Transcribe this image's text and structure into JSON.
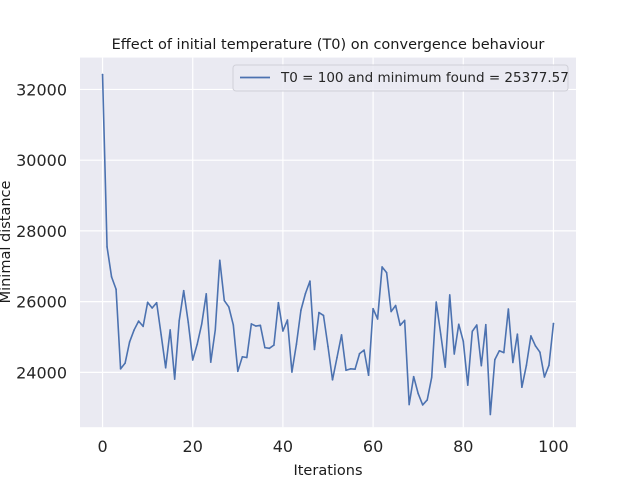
{
  "chart_data": {
    "type": "line",
    "title": "Effect of initial temperature (T0) on convergence behaviour",
    "xlabel": "Iterations",
    "ylabel": "Minimal distance",
    "xlim": [
      -5,
      105
    ],
    "ylim": [
      22450,
      32900
    ],
    "xticks": [
      0,
      20,
      40,
      60,
      80,
      100
    ],
    "yticks": [
      24000,
      26000,
      28000,
      30000,
      32000
    ],
    "xtick_labels": [
      "0",
      "20",
      "40",
      "60",
      "80",
      "100"
    ],
    "ytick_labels": [
      "24000",
      "26000",
      "28000",
      "30000",
      "32000"
    ],
    "grid": true,
    "background": "#eaeaf2",
    "grid_color": "#ffffff",
    "legend_position": "upper right",
    "series": [
      {
        "name": "T0 = 100 and minimum found = 25377.57",
        "color": "#4c72b0",
        "x": [
          0,
          1,
          2,
          3,
          4,
          5,
          6,
          7,
          8,
          9,
          10,
          11,
          12,
          13,
          14,
          15,
          16,
          17,
          18,
          19,
          20,
          21,
          22,
          23,
          24,
          25,
          26,
          27,
          28,
          29,
          30,
          31,
          32,
          33,
          34,
          35,
          36,
          37,
          38,
          39,
          40,
          41,
          42,
          43,
          44,
          45,
          46,
          47,
          48,
          49,
          50,
          51,
          52,
          53,
          54,
          55,
          56,
          57,
          58,
          59,
          60,
          61,
          62,
          63,
          64,
          65,
          66,
          67,
          68,
          69,
          70,
          71,
          72,
          73,
          74,
          75,
          76,
          77,
          78,
          79,
          80,
          81,
          82,
          83,
          84,
          85,
          86,
          87,
          88,
          89,
          90,
          91,
          92,
          93,
          94,
          95,
          96,
          97,
          98,
          99,
          100
        ],
        "values": [
          32420,
          27550,
          26700,
          26350,
          24100,
          24260,
          24860,
          25200,
          25450,
          25300,
          25980,
          25820,
          25970,
          25060,
          24130,
          25200,
          23810,
          25460,
          26310,
          25420,
          24350,
          24800,
          25370,
          26220,
          24290,
          25200,
          27170,
          26030,
          25850,
          25340,
          24030,
          24440,
          24420,
          25370,
          25310,
          25330,
          24700,
          24680,
          24770,
          25970,
          25170,
          25480,
          24010,
          24800,
          25760,
          26230,
          26580,
          24650,
          25690,
          25610,
          24730,
          23790,
          24420,
          25060,
          24060,
          24100,
          24090,
          24530,
          24630,
          23920,
          25800,
          25510,
          26980,
          26820,
          25720,
          25890,
          25330,
          25470,
          23090,
          23880,
          23400,
          23080,
          23220,
          23860,
          25990,
          25080,
          24150,
          26190,
          24520,
          25360,
          24880,
          23640,
          25160,
          25340,
          24190,
          25350,
          22810,
          24360,
          24610,
          24560,
          25790,
          24280,
          25080,
          23580,
          24200,
          25030,
          24750,
          24570,
          23870,
          24200,
          25380
        ]
      }
    ]
  }
}
